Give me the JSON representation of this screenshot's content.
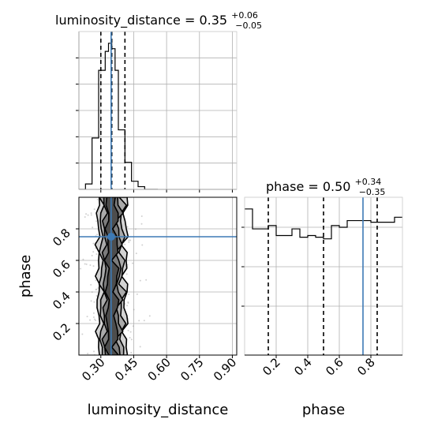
{
  "chart_data": {
    "type": "corner",
    "params": [
      "luminosity_distance",
      "phase"
    ],
    "truths": {
      "luminosity_distance": 0.347,
      "phase": 0.75
    },
    "colors": {
      "truth": "#3d7ab5",
      "hist": "#000000",
      "grid": "#b0b0b0",
      "quantile": "#000000",
      "density": "#808080"
    },
    "grid": true,
    "diagonal": [
      {
        "param": "luminosity_distance",
        "title": {
          "prefix": "luminosity_distance = 0.35",
          "sup": "+0.06",
          "sub": "−0.05"
        },
        "xlim": [
          0.2,
          0.92
        ],
        "quantiles": [
          0.3,
          0.35,
          0.41
        ],
        "bin_edges": [
          0.2,
          0.23,
          0.26,
          0.29,
          0.32,
          0.335,
          0.35,
          0.365,
          0.38,
          0.41,
          0.44,
          0.47,
          0.5,
          0.53,
          0.56
        ],
        "counts": [
          0,
          2,
          19,
          44,
          51,
          54,
          52,
          44,
          22,
          10,
          3,
          1,
          0,
          0
        ]
      },
      {
        "param": "phase",
        "title": {
          "prefix": "phase = 0.50",
          "sup": "+0.34",
          "sub": "−0.35"
        },
        "xlim": [
          0.0,
          1.0
        ],
        "quantiles": [
          0.15,
          0.5,
          0.84
        ],
        "bin_edges": [
          0.0,
          0.05,
          0.1,
          0.15,
          0.2,
          0.25,
          0.3,
          0.35,
          0.4,
          0.45,
          0.5,
          0.55,
          0.6,
          0.65,
          0.7,
          0.75,
          0.8,
          0.85,
          0.9,
          0.95,
          1.0
        ],
        "counts": [
          88,
          76,
          76,
          78,
          72,
          72,
          76,
          71,
          72,
          71,
          70,
          78,
          77,
          81,
          81,
          81,
          80,
          80,
          80,
          83
        ]
      }
    ],
    "joint": {
      "x_param": "luminosity_distance",
      "y_param": "phase",
      "xlim": [
        0.2,
        0.92
      ],
      "ylim": [
        0.0,
        1.0
      ],
      "xlabel": "luminosity_distance",
      "ylabel": "phase"
    },
    "x_ticks": {
      "luminosity_distance": [
        "0.30",
        "0.45",
        "0.60",
        "0.75",
        "0.90"
      ],
      "phase": [
        "0.2",
        "0.4",
        "0.6",
        "0.8"
      ]
    },
    "y_ticks": {
      "phase": [
        "0.2",
        "0.4",
        "0.6",
        "0.8"
      ]
    },
    "xlabel_right": "phase"
  }
}
